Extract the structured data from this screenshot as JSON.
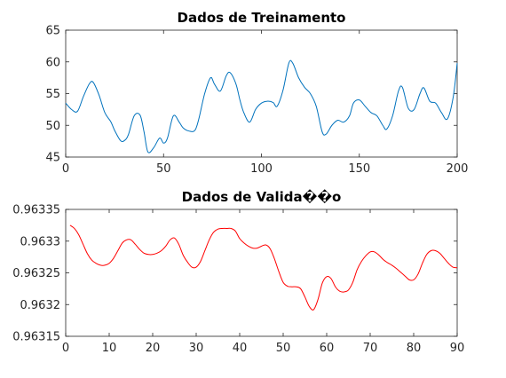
{
  "chart_data": [
    {
      "type": "line",
      "title": "Dados de Treinamento",
      "xlabel": "",
      "ylabel": "",
      "xlim": [
        0,
        200
      ],
      "ylim": [
        45,
        65
      ],
      "xticks": [
        0,
        50,
        100,
        150,
        200
      ],
      "xtick_labels": [
        "0",
        "50",
        "100",
        "150",
        "200"
      ],
      "yticks": [
        45,
        50,
        55,
        60,
        65
      ],
      "ytick_labels": [
        "45",
        "50",
        "55",
        "60",
        "65"
      ],
      "grid": false,
      "series": [
        {
          "color": "#0072BD",
          "x": [
            0,
            3,
            6,
            9,
            12,
            14,
            17,
            20,
            23,
            25,
            28,
            30,
            32,
            35,
            38,
            40,
            42,
            45,
            48,
            50,
            52,
            55,
            58,
            60,
            63,
            66,
            68,
            71,
            74,
            76,
            79,
            82,
            84,
            87,
            89,
            91,
            94,
            97,
            100,
            103,
            106,
            108,
            111,
            114,
            116,
            119,
            122,
            125,
            128,
            131,
            133,
            136,
            139,
            142,
            145,
            147,
            150,
            153,
            156,
            159,
            162,
            164,
            167,
            170,
            172,
            175,
            178,
            181,
            183,
            186,
            189,
            192,
            195,
            198,
            200
          ],
          "values": [
            53.5,
            52.5,
            52.2,
            54.5,
            56.5,
            56.8,
            54.8,
            52.0,
            50.6,
            49.2,
            47.6,
            47.6,
            48.5,
            51.5,
            51.6,
            49.0,
            45.8,
            46.5,
            48.0,
            47.2,
            48.0,
            51.5,
            50.5,
            49.6,
            49.1,
            49.2,
            51.0,
            55.0,
            57.5,
            56.5,
            55.4,
            57.8,
            58.3,
            56.5,
            54.0,
            52.0,
            50.5,
            52.5,
            53.5,
            53.8,
            53.6,
            53.0,
            55.5,
            59.8,
            59.8,
            57.5,
            56.0,
            55.0,
            53.0,
            49.0,
            48.6,
            50.0,
            50.8,
            50.5,
            51.5,
            53.5,
            54.0,
            53.0,
            52.0,
            51.5,
            50.0,
            49.4,
            51.5,
            55.4,
            56.0,
            52.7,
            52.5,
            55.0,
            55.9,
            53.8,
            53.5,
            52.0,
            51.0,
            54.5,
            59.8
          ]
        }
      ]
    },
    {
      "type": "line",
      "title": "Dados de Valida��o",
      "xlabel": "",
      "ylabel": "",
      "xlim": [
        0,
        90
      ],
      "ylim": [
        0.96315,
        0.96335
      ],
      "xticks": [
        0,
        10,
        20,
        30,
        40,
        50,
        60,
        70,
        80,
        90
      ],
      "xtick_labels": [
        "0",
        "10",
        "20",
        "30",
        "40",
        "50",
        "60",
        "70",
        "80",
        "90"
      ],
      "yticks": [
        0.96315,
        0.9632,
        0.96325,
        0.9633,
        0.96335
      ],
      "ytick_labels": [
        "0.96315",
        "0.9632",
        "0.96325",
        "0.9633",
        "0.96335"
      ],
      "grid": false,
      "series": [
        {
          "color": "#FF0000",
          "x": [
            1,
            2,
            3,
            4,
            5,
            6,
            7,
            8,
            9,
            10,
            11,
            12,
            13,
            14,
            15,
            16,
            17,
            18,
            19,
            20,
            21,
            22,
            23,
            24,
            25,
            26,
            27,
            28,
            29,
            30,
            31,
            32,
            33,
            34,
            35,
            36,
            37,
            38,
            39,
            40,
            41,
            42,
            43,
            44,
            45,
            46,
            47,
            48,
            49,
            50,
            51,
            52,
            53,
            54,
            55,
            56,
            57,
            58,
            59,
            60,
            61,
            62,
            63,
            64,
            65,
            66,
            67,
            68,
            69,
            70,
            71,
            72,
            73,
            74,
            75,
            76,
            77,
            78,
            79,
            80,
            81,
            82,
            83,
            84,
            85,
            86,
            87,
            88,
            89,
            90
          ],
          "values": [
            0.963325,
            0.96332,
            0.96331,
            0.963295,
            0.96328,
            0.96327,
            0.963265,
            0.963262,
            0.963262,
            0.963265,
            0.963273,
            0.963285,
            0.963297,
            0.963302,
            0.963302,
            0.963295,
            0.963287,
            0.963281,
            0.963279,
            0.963279,
            0.963281,
            0.963285,
            0.963292,
            0.963302,
            0.963305,
            0.963295,
            0.963278,
            0.963267,
            0.963259,
            0.963259,
            0.963268,
            0.963285,
            0.963302,
            0.963314,
            0.963319,
            0.96332,
            0.96332,
            0.96332,
            0.963316,
            0.963304,
            0.963297,
            0.963292,
            0.963289,
            0.963289,
            0.963292,
            0.963294,
            0.963288,
            0.963272,
            0.963252,
            0.963235,
            0.963229,
            0.963228,
            0.963228,
            0.963225,
            0.963212,
            0.963197,
            0.963192,
            0.963208,
            0.963234,
            0.963244,
            0.963241,
            0.963228,
            0.963221,
            0.96322,
            0.963223,
            0.963235,
            0.963255,
            0.963268,
            0.963277,
            0.963283,
            0.963283,
            0.963278,
            0.963271,
            0.963266,
            0.963262,
            0.963257,
            0.963251,
            0.963245,
            0.963239,
            0.963239,
            0.963248,
            0.963265,
            0.963279,
            0.963285,
            0.963285,
            0.963281,
            0.963273,
            0.963265,
            0.963259,
            0.963258
          ]
        }
      ]
    }
  ]
}
